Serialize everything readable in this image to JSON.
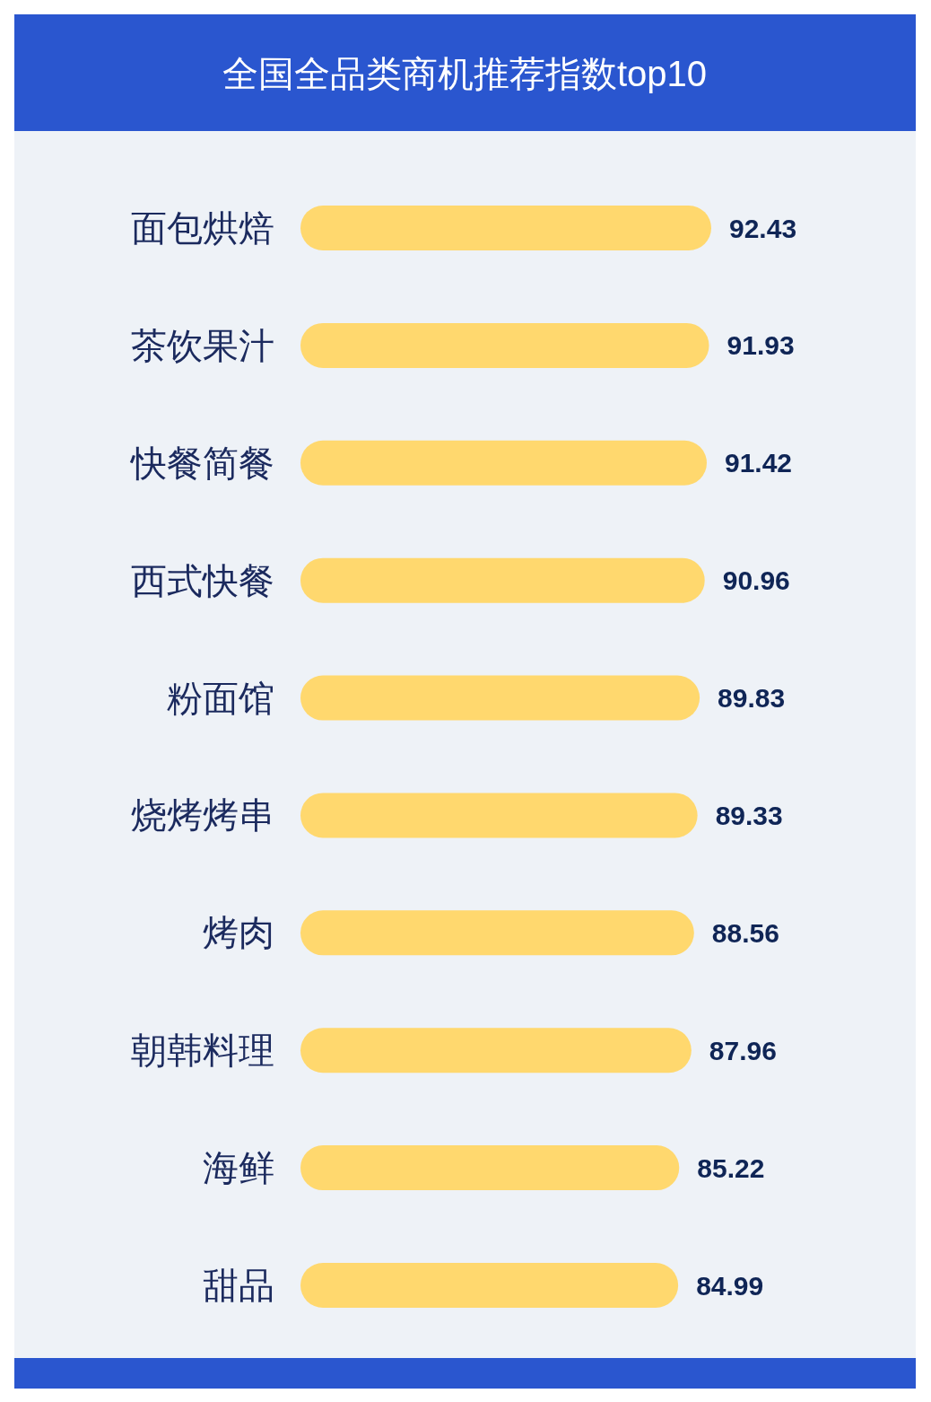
{
  "chart_data": {
    "type": "bar",
    "orientation": "horizontal",
    "title": "全国全品类商机推荐指数top10",
    "categories": [
      "面包烘焙",
      "茶饮果汁",
      "快餐简餐",
      "西式快餐",
      "粉面馆",
      "烧烤烤串",
      "烤肉",
      "朝韩料理",
      "海鲜",
      "甜品"
    ],
    "values": [
      92.43,
      91.93,
      91.42,
      90.96,
      89.83,
      89.33,
      88.56,
      87.96,
      85.22,
      84.99
    ],
    "color": "#ffd86e",
    "data_labels": true
  }
}
